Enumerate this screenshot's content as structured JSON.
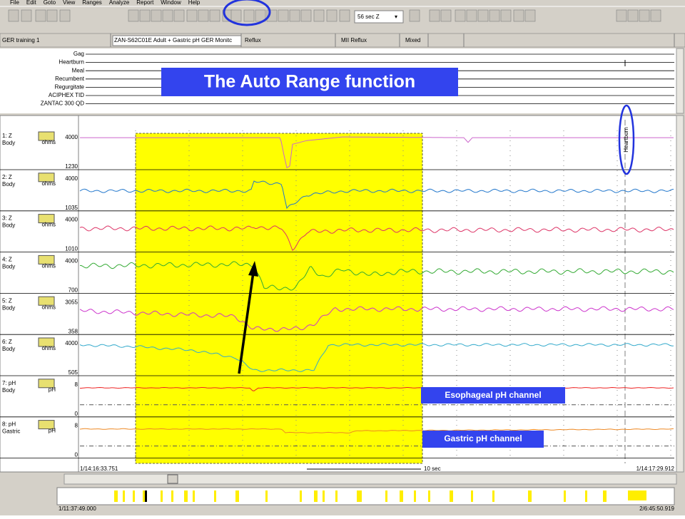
{
  "menu": [
    "File",
    "Edit",
    "Goto",
    "View",
    "Ranges",
    "Analyze",
    "Report",
    "Window",
    "Help"
  ],
  "toolbar": {
    "timebase": "56 sec Z"
  },
  "info_bar": {
    "study": "GER training 1",
    "protocol": "ZAN-S62C01E  Adult + Gastric pH GER Monitc",
    "analysis": "Reflux",
    "mode": "MII Reflux",
    "type": "Mixed"
  },
  "events": [
    "Gag",
    "Heartburn",
    "Meal",
    "Recumbent",
    "Regurgitate",
    "ACIPHEX TID",
    "ZANTAC 300 QD"
  ],
  "annotation_title": "The Auto Range function",
  "channels": [
    {
      "label": "1: Z",
      "site": "Body",
      "unit": "ohms",
      "max": 4000,
      "min": 1230
    },
    {
      "label": "2: Z",
      "site": "Body",
      "unit": "ohms",
      "max": 4000,
      "min": 1035
    },
    {
      "label": "3: Z",
      "site": "Body",
      "unit": "ohms",
      "max": 4000,
      "min": 1010
    },
    {
      "label": "4: Z",
      "site": "Body",
      "unit": "ohms",
      "max": 4000,
      "min": 700
    },
    {
      "label": "5: Z",
      "site": "Body",
      "unit": "ohms",
      "max": 3055,
      "min": 358
    },
    {
      "label": "6: Z",
      "site": "Body",
      "unit": "ohms",
      "max": 4000,
      "min": 505
    },
    {
      "label": "7: pH",
      "site": "Body",
      "unit": "pH",
      "max": 8,
      "min": 0
    },
    {
      "label": "8: pH",
      "site": "Gastric",
      "unit": "pH",
      "max": 8,
      "min": 0
    }
  ],
  "event_marker": "Heartburn",
  "callouts": [
    "Esophageal pH channel",
    "Gastric pH channel"
  ],
  "timeline": {
    "start": "1/14:16:33.751",
    "scale": "10 sec",
    "end": "1/14:17:29.912"
  },
  "overview": {
    "start": "1/11:37:49.000",
    "end": "2/6:45:50.919"
  }
}
